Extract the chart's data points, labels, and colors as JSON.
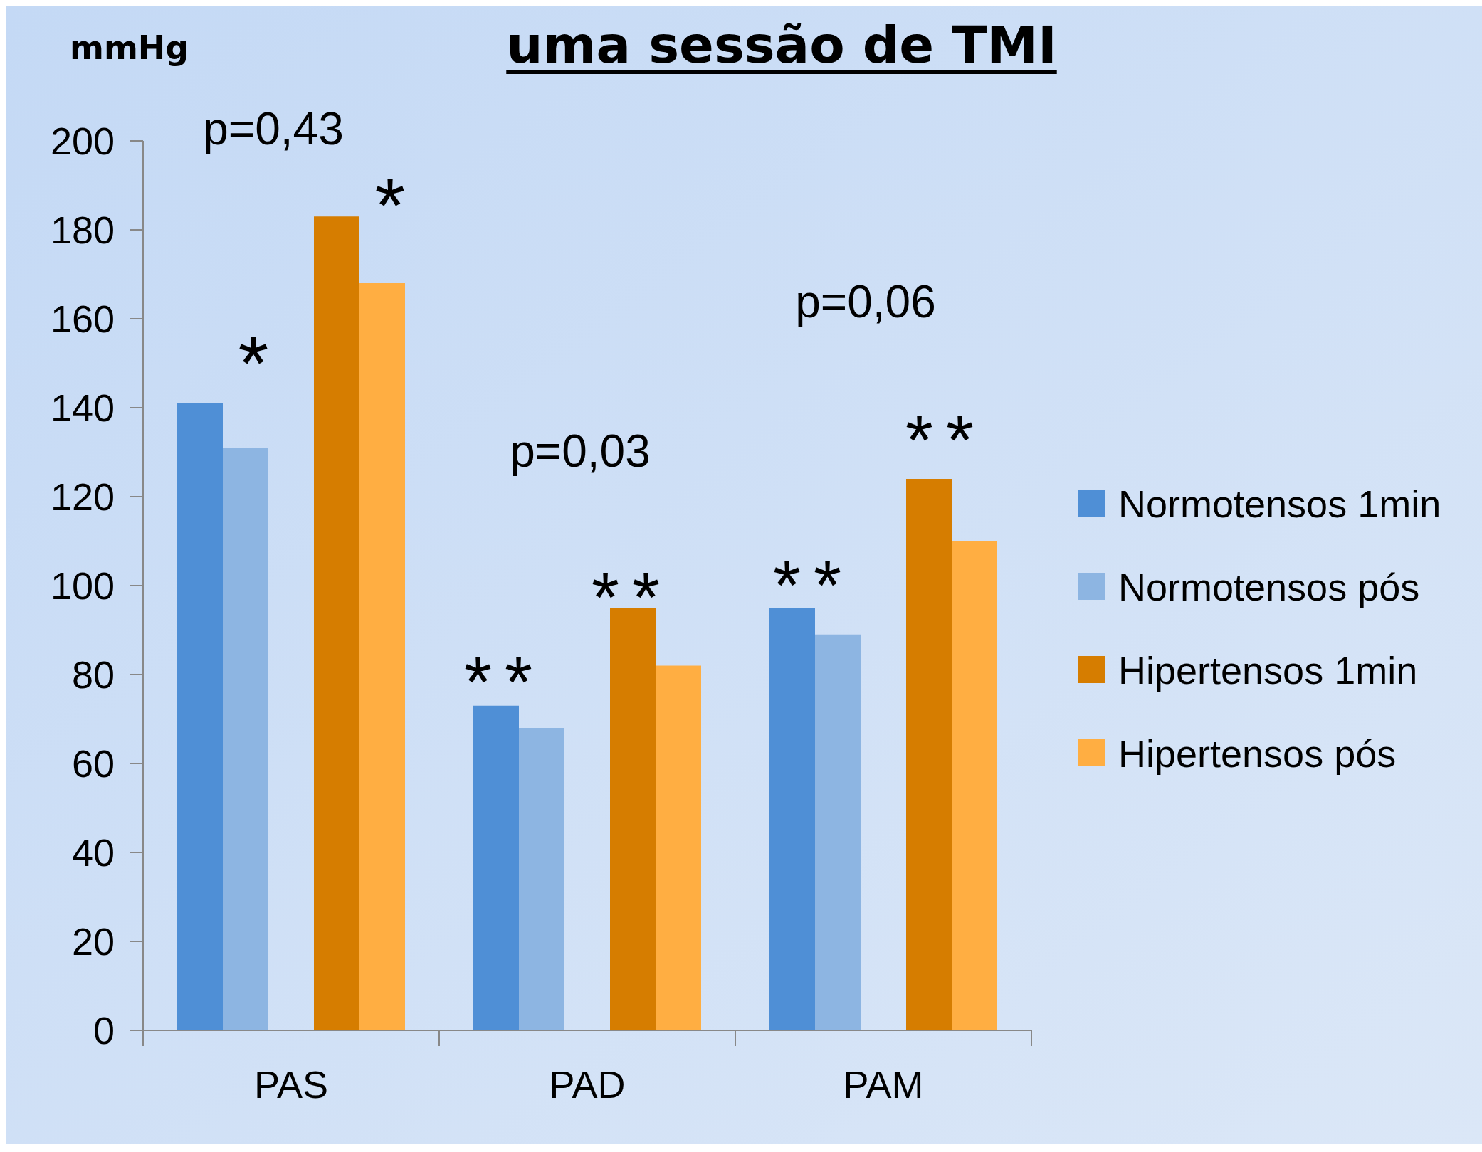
{
  "chart_data": {
    "type": "bar",
    "title": "uma sessão de TMI",
    "ylabel": "mmHg",
    "categories": [
      "PAS",
      "PAD",
      "PAM"
    ],
    "series": [
      {
        "name": "Normotensos 1min",
        "color": "#4f8fd6",
        "values": [
          141,
          73,
          95
        ]
      },
      {
        "name": "Normotensos pós",
        "color": "#8db5e2",
        "values": [
          131,
          68,
          89
        ]
      },
      {
        "name": "Hipertensos 1min",
        "color": "#d67d00",
        "values": [
          183,
          95,
          124
        ]
      },
      {
        "name": "Hipertensos pós",
        "color": "#ffae42",
        "values": [
          168,
          82,
          110
        ]
      }
    ],
    "ylim": [
      0,
      200
    ],
    "yticks": [
      0,
      20,
      40,
      60,
      80,
      100,
      120,
      140,
      160,
      180,
      200
    ],
    "grid": false,
    "legend": "right",
    "annotations": [
      "p=0,43",
      "p=0,03",
      "p=0,06",
      "*",
      "*",
      "**",
      "**",
      "**",
      "**"
    ]
  }
}
